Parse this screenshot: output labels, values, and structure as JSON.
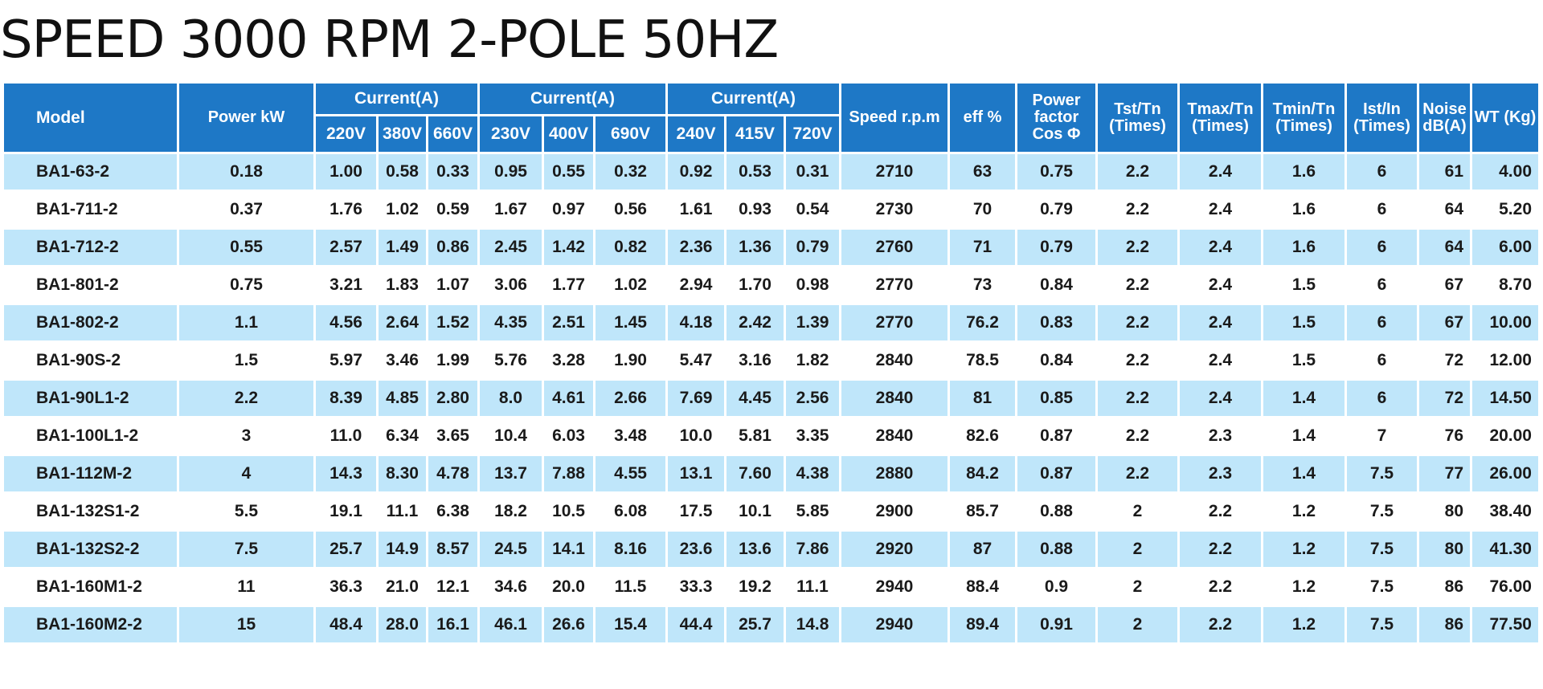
{
  "title": "SPEED 3000 RPM 2-POLE 50HZ",
  "header": {
    "model": "Model",
    "power": "Power kW",
    "current_group_label": "Current(A)",
    "voltages": [
      "220V",
      "380V",
      "660V",
      "230V",
      "400V",
      "690V",
      "240V",
      "415V",
      "720V"
    ],
    "speed": "Speed r.p.m",
    "eff": "eff %",
    "pf": "Power factor Cos Φ",
    "tst": "Tst/Tn (Times)",
    "tmax": "Tmax/Tn (Times)",
    "tmin": "Tmin/Tn (Times)",
    "ist": "Ist/In (Times)",
    "noise": "Noise dB(A)",
    "wt": "WT (Kg)"
  },
  "rows": [
    [
      "BA1-63-2",
      "0.18",
      "1.00",
      "0.58",
      "0.33",
      "0.95",
      "0.55",
      "0.32",
      "0.92",
      "0.53",
      "0.31",
      "2710",
      "63",
      "0.75",
      "2.2",
      "2.4",
      "1.6",
      "6",
      "61",
      "4.00"
    ],
    [
      "BA1-711-2",
      "0.37",
      "1.76",
      "1.02",
      "0.59",
      "1.67",
      "0.97",
      "0.56",
      "1.61",
      "0.93",
      "0.54",
      "2730",
      "70",
      "0.79",
      "2.2",
      "2.4",
      "1.6",
      "6",
      "64",
      "5.20"
    ],
    [
      "BA1-712-2",
      "0.55",
      "2.57",
      "1.49",
      "0.86",
      "2.45",
      "1.42",
      "0.82",
      "2.36",
      "1.36",
      "0.79",
      "2760",
      "71",
      "0.79",
      "2.2",
      "2.4",
      "1.6",
      "6",
      "64",
      "6.00"
    ],
    [
      "BA1-801-2",
      "0.75",
      "3.21",
      "1.83",
      "1.07",
      "3.06",
      "1.77",
      "1.02",
      "2.94",
      "1.70",
      "0.98",
      "2770",
      "73",
      "0.84",
      "2.2",
      "2.4",
      "1.5",
      "6",
      "67",
      "8.70"
    ],
    [
      "BA1-802-2",
      "1.1",
      "4.56",
      "2.64",
      "1.52",
      "4.35",
      "2.51",
      "1.45",
      "4.18",
      "2.42",
      "1.39",
      "2770",
      "76.2",
      "0.83",
      "2.2",
      "2.4",
      "1.5",
      "6",
      "67",
      "10.00"
    ],
    [
      "BA1-90S-2",
      "1.5",
      "5.97",
      "3.46",
      "1.99",
      "5.76",
      "3.28",
      "1.90",
      "5.47",
      "3.16",
      "1.82",
      "2840",
      "78.5",
      "0.84",
      "2.2",
      "2.4",
      "1.5",
      "6",
      "72",
      "12.00"
    ],
    [
      "BA1-90L1-2",
      "2.2",
      "8.39",
      "4.85",
      "2.80",
      "8.0",
      "4.61",
      "2.66",
      "7.69",
      "4.45",
      "2.56",
      "2840",
      "81",
      "0.85",
      "2.2",
      "2.4",
      "1.4",
      "6",
      "72",
      "14.50"
    ],
    [
      "BA1-100L1-2",
      "3",
      "11.0",
      "6.34",
      "3.65",
      "10.4",
      "6.03",
      "3.48",
      "10.0",
      "5.81",
      "3.35",
      "2840",
      "82.6",
      "0.87",
      "2.2",
      "2.3",
      "1.4",
      "7",
      "76",
      "20.00"
    ],
    [
      "BA1-112M-2",
      "4",
      "14.3",
      "8.30",
      "4.78",
      "13.7",
      "7.88",
      "4.55",
      "13.1",
      "7.60",
      "4.38",
      "2880",
      "84.2",
      "0.87",
      "2.2",
      "2.3",
      "1.4",
      "7.5",
      "77",
      "26.00"
    ],
    [
      "BA1-132S1-2",
      "5.5",
      "19.1",
      "11.1",
      "6.38",
      "18.2",
      "10.5",
      "6.08",
      "17.5",
      "10.1",
      "5.85",
      "2900",
      "85.7",
      "0.88",
      "2",
      "2.2",
      "1.2",
      "7.5",
      "80",
      "38.40"
    ],
    [
      "BA1-132S2-2",
      "7.5",
      "25.7",
      "14.9",
      "8.57",
      "24.5",
      "14.1",
      "8.16",
      "23.6",
      "13.6",
      "7.86",
      "2920",
      "87",
      "0.88",
      "2",
      "2.2",
      "1.2",
      "7.5",
      "80",
      "41.30"
    ],
    [
      "BA1-160M1-2",
      "11",
      "36.3",
      "21.0",
      "12.1",
      "34.6",
      "20.0",
      "11.5",
      "33.3",
      "19.2",
      "11.1",
      "2940",
      "88.4",
      "0.9",
      "2",
      "2.2",
      "1.2",
      "7.5",
      "86",
      "76.00"
    ],
    [
      "BA1-160M2-2",
      "15",
      "48.4",
      "28.0",
      "16.1",
      "46.1",
      "26.6",
      "15.4",
      "44.4",
      "25.7",
      "14.8",
      "2940",
      "89.4",
      "0.91",
      "2",
      "2.2",
      "1.2",
      "7.5",
      "86",
      "77.50"
    ]
  ]
}
